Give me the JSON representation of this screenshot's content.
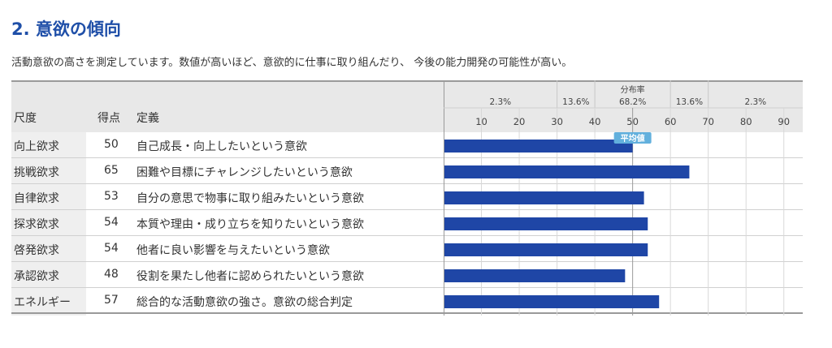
{
  "page": {
    "title": "2. 意欲の傾向",
    "subtitle": "活動意欲の高さを測定しています。数値が高いほど、意欲的に仕事に取り組んだり、 今後の能力開発の可能性が高い。"
  },
  "table": {
    "headers": {
      "scale": "尺度",
      "score": "得点",
      "definition": "定義"
    },
    "rows": [
      {
        "scale": "向上欲求",
        "score": 50,
        "definition": "自己成長・向上したいという意欲"
      },
      {
        "scale": "挑戦欲求",
        "score": 65,
        "definition": "困難や目標にチャレンジしたいという意欲"
      },
      {
        "scale": "自律欲求",
        "score": 53,
        "definition": "自分の意思で物事に取り組みたいという意欲"
      },
      {
        "scale": "探求欲求",
        "score": 54,
        "definition": "本質や理由・成り立ちを知りたいという意欲"
      },
      {
        "scale": "啓発欲求",
        "score": 54,
        "definition": "他者に良い影響を与えたいという意欲"
      },
      {
        "scale": "承認欲求",
        "score": 48,
        "definition": "役割を果たし他者に認められたいという意欲"
      },
      {
        "scale": "エネルギー",
        "score": 57,
        "definition": "総合的な活動意欲の強さ。意欲の総合判定"
      }
    ]
  },
  "chart_data": {
    "type": "bar",
    "orientation": "horizontal",
    "categories": [
      "向上欲求",
      "挑戦欲求",
      "自律欲求",
      "探求欲求",
      "啓発欲求",
      "承認欲求",
      "エネルギー"
    ],
    "values": [
      50,
      65,
      53,
      54,
      54,
      48,
      57
    ],
    "xlim": [
      0,
      95
    ],
    "xticks": [
      10,
      20,
      30,
      40,
      50,
      60,
      70,
      80,
      90
    ],
    "distribution_title": "分布率",
    "distribution": [
      {
        "range": [
          0,
          30
        ],
        "label": "2.3%"
      },
      {
        "range": [
          30,
          40
        ],
        "label": "13.6%"
      },
      {
        "range": [
          40,
          60
        ],
        "label": "68.2%"
      },
      {
        "range": [
          60,
          70
        ],
        "label": "13.6%"
      },
      {
        "range": [
          70,
          95
        ],
        "label": "2.3%"
      }
    ],
    "average": 50,
    "average_label": "平均値",
    "grid": true,
    "colors": {
      "bar": "#1f46a6",
      "average_badge": "#62b0dd",
      "header_bg": "#e8e8e8",
      "title": "#1f4fa8"
    }
  }
}
